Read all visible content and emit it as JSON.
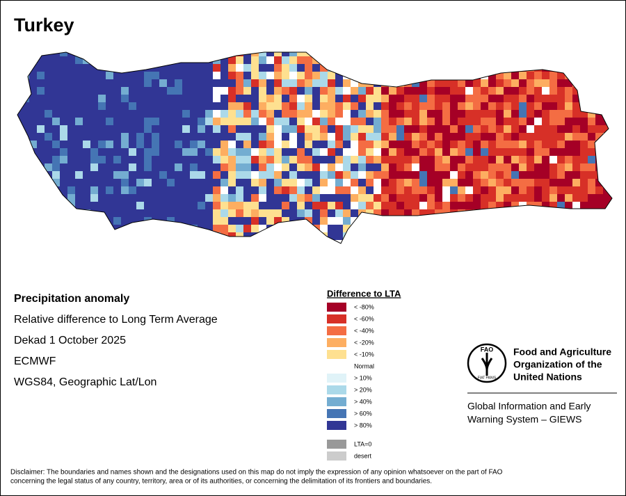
{
  "header": {
    "title": "Turkey"
  },
  "info": {
    "heading": "Precipitation anomaly",
    "lines": [
      "Relative difference to Long Term Average",
      "Dekad 1 October 2025",
      "ECMWF",
      "WGS84, Geographic Lat/Lon"
    ]
  },
  "legend": {
    "title": "Difference to LTA",
    "items": [
      {
        "label": "< -80%",
        "color": "#a50026"
      },
      {
        "label": "< -60%",
        "color": "#d73027"
      },
      {
        "label": "< -40%",
        "color": "#f46d43"
      },
      {
        "label": "< -20%",
        "color": "#fdae61"
      },
      {
        "label": "< -10%",
        "color": "#fee090"
      },
      {
        "label": "Normal",
        "color": "#ffffff"
      },
      {
        "label": "> 10%",
        "color": "#e0f3f8"
      },
      {
        "label": "> 20%",
        "color": "#abd9e9"
      },
      {
        "label": "> 40%",
        "color": "#74add1"
      },
      {
        "label": "> 60%",
        "color": "#4575b4"
      },
      {
        "label": "> 80%",
        "color": "#313695"
      }
    ],
    "extra_items": [
      {
        "label": "LTA=0",
        "color": "#999999"
      },
      {
        "label": "desert",
        "color": "#cccccc"
      }
    ]
  },
  "logo": {
    "acronym": "FAO",
    "motto": "FIAT PANIS"
  },
  "organization": {
    "name_lines": [
      "Food and Agriculture",
      "Organization of the",
      "United Nations"
    ],
    "system_lines": [
      "Global Information and Early",
      "Warning System – GIEWS"
    ]
  },
  "disclaimer": [
    "Disclaimer: The boundaries and names shown and the designations used on this map do not imply the expression of any opinion whatsoever on the part of FAO",
    "concerning the legal status of any country, territory, area or of its authorities, or concerning the delimitation of its frontiers and boundaries."
  ]
}
